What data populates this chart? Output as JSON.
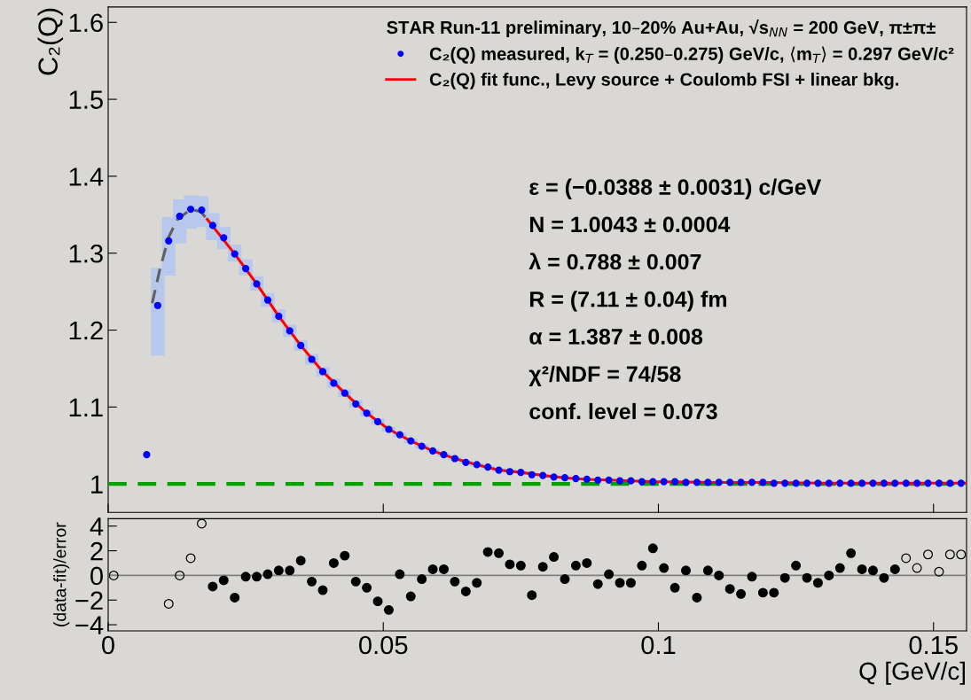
{
  "chart_data": [
    {
      "type": "scatter",
      "ylabel": "C₂(Q)",
      "legend_title": "STAR Run-11 preliminary, 10–20% Au+Au, √s$_{NN}$ = 200 GeV, π±π±",
      "legend": "top right",
      "tick_labels": "y",
      "xlim": [
        0,
        0.156
      ],
      "xticks": [
        0,
        0.05,
        0.1,
        0.15
      ],
      "ylim": [
        0.963,
        1.62
      ],
      "yticks": [
        1,
        1.1,
        1.2,
        1.3,
        1.4,
        1.5,
        1.6
      ],
      "ref_lines": [
        {
          "axis": "y",
          "value": 1,
          "color": "#00a000",
          "line_style": "dashed"
        }
      ],
      "annotations": [
        "ε = (−0.0388 ± 0.0031) c/GeV",
        "N = 1.0043 ± 0.0004",
        "λ = 0.788 ± 0.007",
        "R = (7.11 ± 0.04) fm",
        "α = 1.387 ± 0.008",
        "χ²/NDF = 74/58",
        "conf. level = 0.073"
      ],
      "series": [
        {
          "name": "C₂(Q) measured, k$_{T}$ = (0.250–0.275) GeV/c, ⟨m$_{T}$⟩ = 0.297 GeV/c²",
          "type": "scatter",
          "marker": "circle",
          "color": "#0000ff",
          "x": [
            0.007,
            0.009,
            0.011,
            0.013,
            0.015,
            0.017,
            0.019,
            0.021,
            0.023,
            0.025,
            0.027,
            0.029,
            0.031,
            0.033,
            0.035,
            0.037,
            0.039,
            0.041,
            0.043,
            0.045,
            0.047,
            0.049,
            0.051,
            0.053,
            0.055,
            0.057,
            0.059,
            0.061,
            0.063,
            0.065,
            0.067,
            0.069,
            0.071,
            0.073,
            0.075,
            0.077,
            0.079,
            0.081,
            0.083,
            0.085,
            0.087,
            0.089,
            0.091,
            0.093,
            0.095,
            0.097,
            0.099,
            0.101,
            0.103,
            0.105,
            0.107,
            0.109,
            0.111,
            0.113,
            0.115,
            0.117,
            0.119,
            0.121,
            0.123,
            0.125,
            0.127,
            0.129,
            0.131,
            0.133,
            0.135,
            0.137,
            0.139,
            0.141,
            0.143,
            0.145,
            0.147,
            0.149,
            0.151,
            0.153,
            0.155
          ],
          "values": [
            1.038,
            1.232,
            1.316,
            1.348,
            1.357,
            1.356,
            1.336,
            1.32,
            1.299,
            1.28,
            1.26,
            1.239,
            1.218,
            1.199,
            1.18,
            1.162,
            1.146,
            1.131,
            1.118,
            1.104,
            1.092,
            1.081,
            1.071,
            1.064,
            1.056,
            1.049,
            1.043,
            1.038,
            1.033,
            1.028,
            1.025,
            1.022,
            1.018,
            1.016,
            1.015,
            1.012,
            1.011,
            1.009,
            1.008,
            1.007,
            1.006,
            1.005,
            1.005,
            1.004,
            1.004,
            1.003,
            1.003,
            1.003,
            1.003,
            1.002,
            1.002,
            1.002,
            1.002,
            1.002,
            1.002,
            1.002,
            1.002,
            1.001,
            1.001,
            1.001,
            1.001,
            1.001,
            1.001,
            1.001,
            1.001,
            1.001,
            1.001,
            1.001,
            1.001,
            1.001,
            1.001,
            1.001,
            1.001,
            1.001,
            1.001
          ],
          "errors": [
            null,
            [
              1.167,
              1.281
            ],
            [
              1.271,
              1.347
            ],
            [
              1.313,
              1.37
            ],
            [
              1.332,
              1.375
            ],
            [
              1.334,
              1.374
            ],
            [
              1.317,
              1.352
            ],
            [
              1.305,
              1.334
            ],
            [
              1.289,
              1.311
            ],
            [
              1.271,
              1.292
            ],
            [
              1.251,
              1.27
            ],
            [
              1.23,
              1.248
            ],
            [
              1.21,
              1.227
            ],
            0.008,
            0.007,
            0.007,
            0.006,
            0.006,
            0.005,
            0.005,
            0.004,
            0.004,
            0.003,
            0.003,
            0.003,
            0.003,
            0.002,
            0.002,
            0.002,
            0.002,
            0.002,
            0.002,
            0.002,
            null,
            null,
            null,
            null,
            null,
            null,
            null,
            null,
            null,
            null,
            null,
            null,
            null,
            null,
            null,
            null,
            null,
            null,
            null,
            null,
            null,
            null,
            null,
            null,
            null,
            null,
            null,
            null,
            null,
            null,
            null,
            null,
            null,
            null,
            null,
            null,
            null,
            null,
            null,
            null,
            null,
            null
          ]
        },
        {
          "name": "C₂(Q) fit func., Levy source + Coulomb FSI + linear bkg.",
          "type": "line",
          "color": "#ff0000",
          "x": [
            0.018,
            0.023,
            0.027,
            0.031,
            0.035,
            0.039,
            0.043,
            0.047,
            0.051,
            0.055,
            0.059,
            0.063,
            0.067,
            0.071,
            0.075,
            0.079,
            0.083,
            0.087,
            0.091,
            0.095,
            0.099,
            0.11,
            0.12,
            0.13,
            0.14,
            0.156
          ],
          "values": [
            1.344,
            1.299,
            1.26,
            1.218,
            1.18,
            1.146,
            1.118,
            1.092,
            1.071,
            1.056,
            1.043,
            1.033,
            1.025,
            1.018,
            1.015,
            1.011,
            1.008,
            1.006,
            1.005,
            1.004,
            1.003,
            1.002,
            1.002,
            1.001,
            1.001,
            1.001
          ]
        },
        {
          "type": "line",
          "color": "#606060",
          "line_style": "dashed",
          "x": [
            0.008,
            0.0094,
            0.011,
            0.0126,
            0.015,
            0.0168,
            0.018
          ],
          "values": [
            1.235,
            1.279,
            1.321,
            1.344,
            1.357,
            1.354,
            1.344
          ]
        }
      ]
    },
    {
      "type": "scatter",
      "ylabel": "(data-fit)/error",
      "xlabel": "Q [GeV/c]",
      "xlim": [
        0,
        0.156
      ],
      "xticks": [
        0,
        0.05,
        0.1,
        0.15
      ],
      "ylim": [
        -4.5,
        4.6
      ],
      "yticks": [
        {
          "value": -4,
          "label": "−4"
        },
        {
          "value": -2,
          "label": "−2"
        },
        0,
        2,
        4
      ],
      "ref_lines": [
        {
          "axis": "y",
          "value": 0,
          "color": "#808080"
        }
      ],
      "series": [
        {
          "type": "scatter",
          "marker": "circle",
          "color": "#000000",
          "x": [
            0.019,
            0.021,
            0.023,
            0.025,
            0.027,
            0.029,
            0.031,
            0.033,
            0.035,
            0.037,
            0.039,
            0.041,
            0.043,
            0.045,
            0.047,
            0.049,
            0.051,
            0.053,
            0.055,
            0.057,
            0.059,
            0.061,
            0.063,
            0.065,
            0.067,
            0.069,
            0.071,
            0.073,
            0.075,
            0.077,
            0.079,
            0.081,
            0.083,
            0.085,
            0.087,
            0.089,
            0.091,
            0.093,
            0.095,
            0.097,
            0.099,
            0.101,
            0.103,
            0.105,
            0.107,
            0.109,
            0.111,
            0.113,
            0.115,
            0.117,
            0.119,
            0.121,
            0.123,
            0.125,
            0.127,
            0.129,
            0.131,
            0.133,
            0.135,
            0.137,
            0.139,
            0.141,
            0.143
          ],
          "values": [
            -0.9,
            -0.4,
            -1.8,
            -0.1,
            -0.1,
            0.1,
            0.4,
            0.4,
            1.2,
            -0.5,
            -1.2,
            1.0,
            1.6,
            -0.5,
            -1.0,
            -2.1,
            -2.8,
            0.1,
            -1.7,
            -0.3,
            0.5,
            0.5,
            -0.5,
            -1.3,
            -0.6,
            1.9,
            1.8,
            0.9,
            0.8,
            -1.6,
            0.7,
            1.5,
            -0.3,
            0.8,
            1.0,
            -0.7,
            0.1,
            -0.6,
            -0.6,
            0.8,
            2.2,
            0.6,
            -1.0,
            0.4,
            -1.8,
            0.4,
            0.0,
            -1.1,
            -1.5,
            -0.1,
            -1.4,
            -1.4,
            -0.2,
            0.8,
            -0.2,
            -0.6,
            0.0,
            0.6,
            1.8,
            0.5,
            0.4,
            -0.2,
            0.5
          ]
        },
        {
          "type": "scatter",
          "marker": "circle",
          "color": "#000000",
          "x": [
            0.001,
            0.011,
            0.013,
            0.015,
            0.017,
            0.145,
            0.147,
            0.149,
            0.151,
            0.153,
            0.155
          ],
          "values": [
            0.0,
            -2.3,
            0.0,
            1.4,
            4.2,
            1.4,
            0.6,
            1.7,
            0.3,
            1.7,
            1.7
          ]
        }
      ]
    }
  ]
}
